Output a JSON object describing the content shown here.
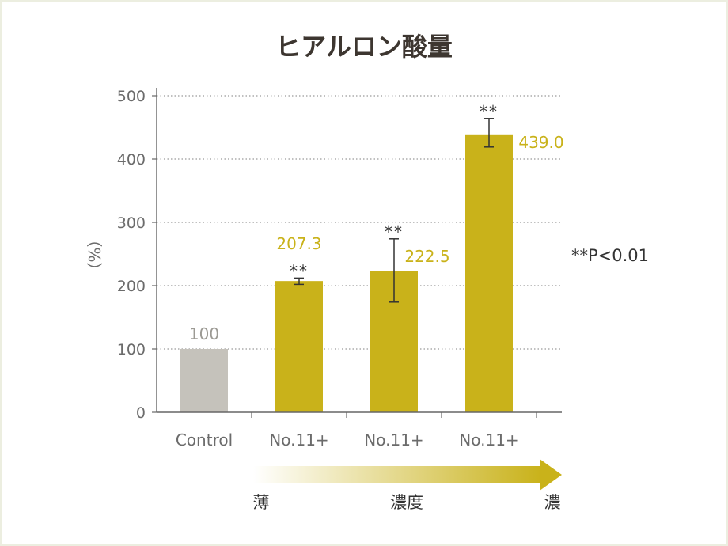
{
  "chart_data": {
    "type": "bar",
    "title": "ヒアルロン酸量",
    "ylabel": "（%）",
    "ylim": [
      0,
      500
    ],
    "yticks": [
      0,
      100,
      200,
      300,
      400,
      500
    ],
    "grid": true,
    "categories": [
      "Control",
      "No.11+",
      "No.11+",
      "No.11+"
    ],
    "values": [
      100,
      207.3,
      222.5,
      439.0
    ],
    "value_labels": [
      "100",
      "207.3",
      "222.5",
      "439.0"
    ],
    "error_low": [
      null,
      202,
      174,
      419
    ],
    "error_high": [
      null,
      212,
      274,
      464
    ],
    "significance": [
      "",
      "**",
      "**",
      "**"
    ],
    "colors": [
      "#c5c2bb",
      "#c9b21a",
      "#c9b21a",
      "#c9b21a"
    ],
    "label_colors": [
      "#9c9a94",
      "#c9b21a",
      "#c9b21a",
      "#c9b21a"
    ],
    "annotation": "**P<0.01",
    "gradient_arrow": {
      "left_label": "薄",
      "center_label": "濃度",
      "right_label": "濃",
      "start_color": "#ffffff",
      "end_color": "#c9b21a"
    }
  }
}
